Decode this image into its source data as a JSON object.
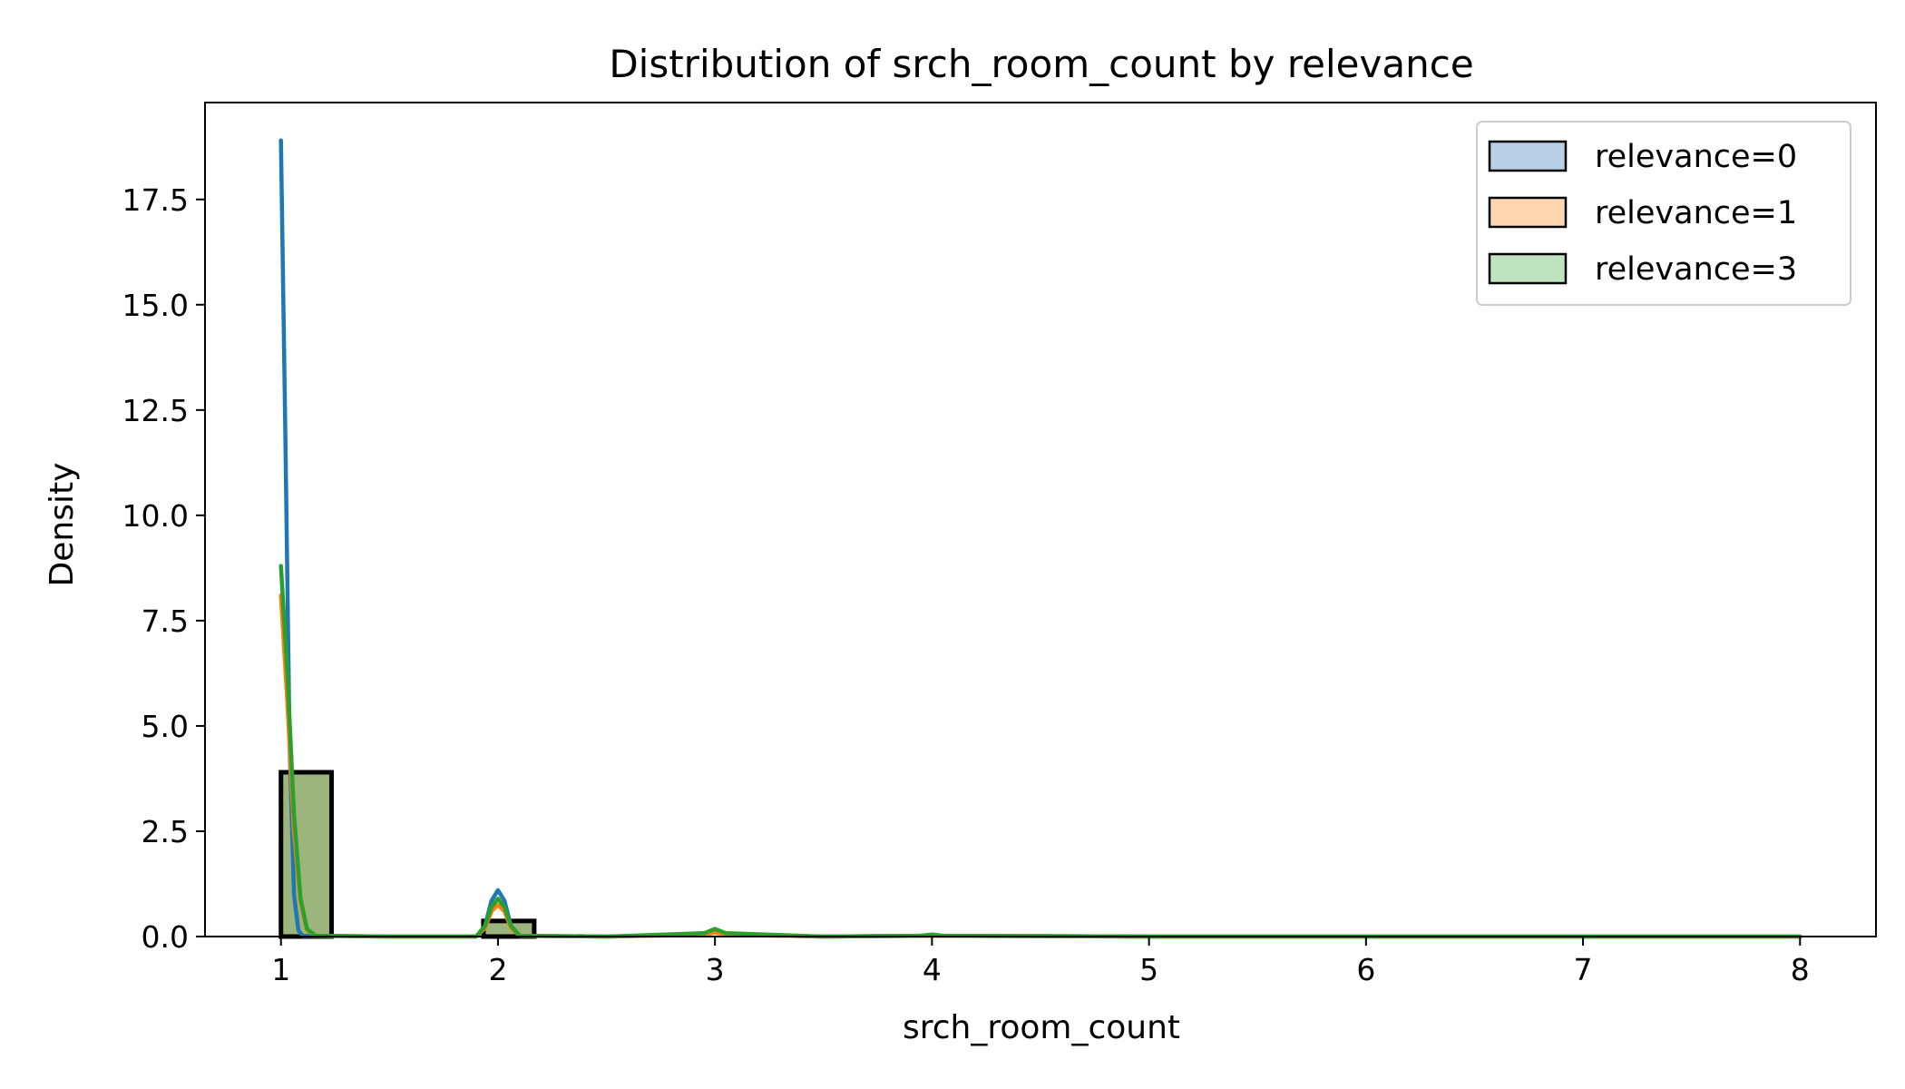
{
  "chart_data": {
    "type": "histogram-kde",
    "title": "Distribution of srch_room_count by relevance",
    "xlabel": "srch_room_count",
    "ylabel": "Density",
    "xlim": [
      0.65,
      8.35
    ],
    "ylim": [
      0,
      19.8
    ],
    "xticks": [
      1,
      2,
      3,
      4,
      5,
      6,
      7,
      8
    ],
    "yticks": [
      0.0,
      2.5,
      5.0,
      7.5,
      10.0,
      12.5,
      15.0,
      17.5
    ],
    "ytick_labels": [
      "0.0",
      "2.5",
      "5.0",
      "7.5",
      "10.0",
      "12.5",
      "15.0",
      "17.5"
    ],
    "grid": false,
    "legend_position": "top-right",
    "bars": [
      {
        "x0": 1.0,
        "x1": 1.233,
        "value": 3.9
      },
      {
        "x0": 1.933,
        "x1": 2.167,
        "value": 0.37
      }
    ],
    "series": [
      {
        "name": "relevance=0",
        "color": "#1f77b4",
        "fill": "#b8d0e6",
        "x": [
          1.0,
          1.02,
          1.04,
          1.06,
          1.08,
          1.1,
          1.5,
          1.9,
          1.94,
          1.97,
          2.0,
          2.03,
          2.06,
          2.1,
          2.5,
          2.95,
          3.0,
          3.05,
          3.5,
          4.0,
          5.0,
          6.0,
          7.0,
          8.0
        ],
        "y": [
          18.9,
          12.0,
          4.5,
          1.0,
          0.15,
          0.02,
          0.0,
          0.0,
          0.25,
          0.85,
          1.1,
          0.85,
          0.25,
          0.02,
          0.0,
          0.05,
          0.12,
          0.05,
          0.0,
          0.02,
          0.0,
          0.0,
          0.0,
          0.0
        ]
      },
      {
        "name": "relevance=1",
        "color": "#ff7f0e",
        "fill": "#ffd6b0",
        "x": [
          1.0,
          1.03,
          1.06,
          1.09,
          1.12,
          1.16,
          1.5,
          1.9,
          1.94,
          1.97,
          2.0,
          2.03,
          2.06,
          2.1,
          2.5,
          2.95,
          3.0,
          3.05,
          3.5,
          4.0,
          5.0,
          6.0,
          7.0,
          8.0
        ],
        "y": [
          8.1,
          5.5,
          2.5,
          0.8,
          0.15,
          0.02,
          0.0,
          0.0,
          0.2,
          0.6,
          0.75,
          0.6,
          0.2,
          0.02,
          0.0,
          0.04,
          0.1,
          0.04,
          0.0,
          0.02,
          0.0,
          0.0,
          0.0,
          0.0
        ]
      },
      {
        "name": "relevance=3",
        "color": "#2ca02c",
        "fill": "#bfe3bf",
        "x": [
          1.0,
          1.03,
          1.06,
          1.09,
          1.12,
          1.16,
          1.5,
          1.9,
          1.94,
          1.97,
          2.0,
          2.03,
          2.06,
          2.1,
          2.5,
          2.95,
          3.0,
          3.05,
          3.5,
          3.95,
          4.0,
          4.05,
          5.0,
          6.0,
          7.0,
          8.0
        ],
        "y": [
          8.8,
          6.2,
          2.9,
          0.9,
          0.18,
          0.02,
          0.0,
          0.0,
          0.25,
          0.7,
          0.9,
          0.7,
          0.25,
          0.02,
          0.0,
          0.08,
          0.18,
          0.08,
          0.0,
          0.02,
          0.05,
          0.02,
          0.0,
          0.0,
          0.0,
          0.0
        ]
      }
    ]
  }
}
